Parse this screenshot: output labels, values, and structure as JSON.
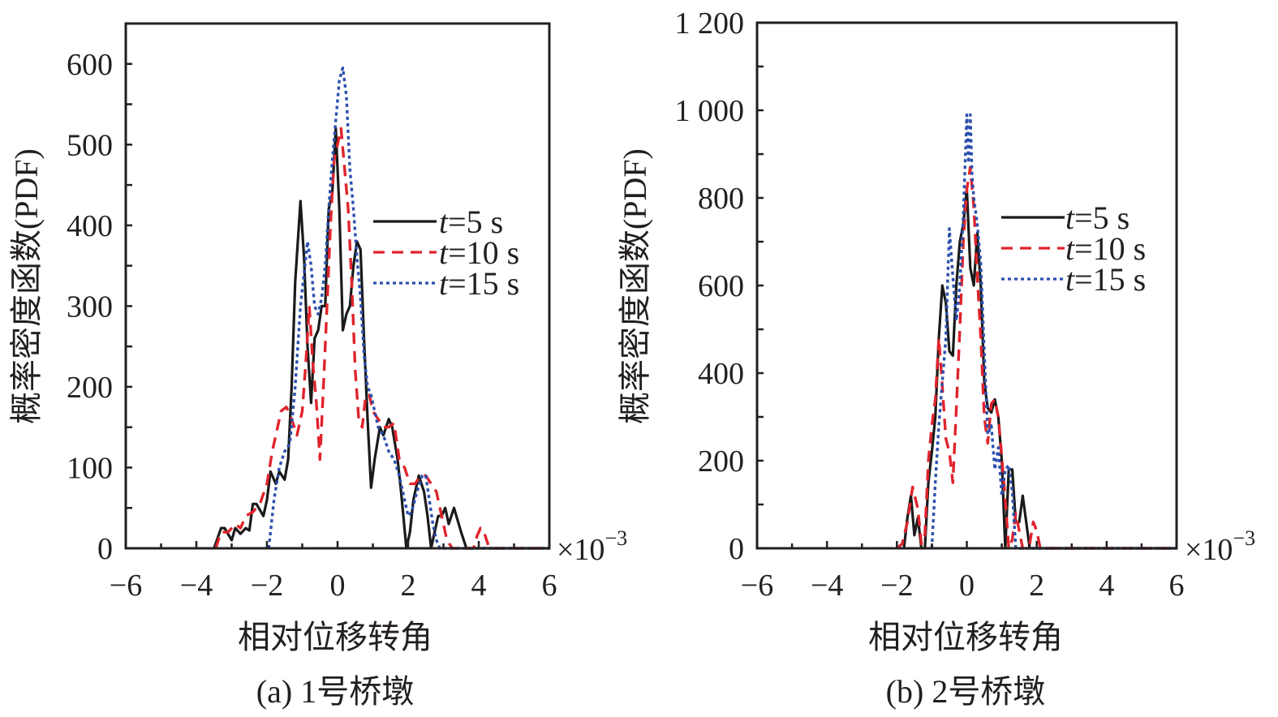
{
  "chart_data": [
    {
      "type": "line",
      "panel": "a",
      "caption": "(a) 1号桥墩",
      "xlabel": "相对位移转角",
      "ylabel": "概率密度函数(PDF)",
      "x_multiplier": "×10",
      "x_multiplier_exp": "−3",
      "xlim": [
        -6,
        6
      ],
      "ylim": [
        0,
        650
      ],
      "xticks": [
        -6,
        -4,
        -2,
        0,
        2,
        4,
        6
      ],
      "xtick_labels": [
        "−6",
        "−4",
        "−2",
        "0",
        "2",
        "4",
        "6"
      ],
      "yticks": [
        0,
        100,
        200,
        300,
        400,
        500,
        600
      ],
      "ytick_labels": [
        "0",
        "100",
        "200",
        "300",
        "400",
        "500",
        "600"
      ],
      "legend_position": "center-right",
      "grid": false,
      "series": [
        {
          "name": "t=5 s",
          "italic_prefix": "t",
          "label_rest": "=5 s",
          "style": "solid",
          "color": "#1a1a1a",
          "x": [
            -3.5,
            -3.3,
            -3.2,
            -3.0,
            -2.9,
            -2.75,
            -2.6,
            -2.5,
            -2.4,
            -2.3,
            -2.1,
            -2.0,
            -1.9,
            -1.75,
            -1.65,
            -1.5,
            -1.4,
            -1.3,
            -1.2,
            -1.05,
            -0.95,
            -0.85,
            -0.75,
            -0.65,
            -0.55,
            -0.45,
            -0.35,
            -0.25,
            -0.15,
            -0.05,
            0.05,
            0.15,
            0.25,
            0.35,
            0.45,
            0.55,
            0.65,
            0.75,
            0.85,
            0.95,
            1.05,
            1.2,
            1.3,
            1.45,
            1.55,
            1.7,
            1.8,
            1.95,
            2.05,
            2.15,
            2.3,
            2.45,
            2.55,
            2.65,
            2.75,
            2.85,
            2.95,
            3.05,
            3.15,
            3.3,
            3.4,
            3.5,
            3.65,
            6.0
          ],
          "y": [
            0,
            25,
            25,
            10,
            25,
            18,
            25,
            22,
            55,
            55,
            40,
            60,
            95,
            80,
            95,
            85,
            110,
            200,
            330,
            430,
            360,
            250,
            180,
            260,
            270,
            300,
            300,
            420,
            440,
            520,
            420,
            270,
            290,
            300,
            350,
            380,
            370,
            260,
            160,
            75,
            110,
            150,
            140,
            160,
            150,
            110,
            70,
            0,
            20,
            60,
            90,
            70,
            40,
            0,
            20,
            40,
            40,
            50,
            30,
            50,
            35,
            20,
            0,
            0
          ]
        },
        {
          "name": "t=10 s",
          "italic_prefix": "t",
          "label_rest": "=10 s",
          "style": "dashed",
          "color": "#e0242c",
          "x": [
            -3.45,
            -3.3,
            -3.1,
            -2.9,
            -2.75,
            -2.6,
            -2.4,
            -2.2,
            -2.0,
            -1.85,
            -1.7,
            -1.6,
            -1.45,
            -1.3,
            -1.15,
            -1.0,
            -0.9,
            -0.8,
            -0.7,
            -0.6,
            -0.5,
            -0.4,
            -0.3,
            -0.2,
            -0.1,
            0.0,
            0.1,
            0.2,
            0.3,
            0.4,
            0.5,
            0.6,
            0.7,
            0.8,
            0.9,
            1.0,
            1.15,
            1.3,
            1.45,
            1.6,
            1.75,
            1.9,
            2.05,
            2.2,
            2.35,
            2.5,
            2.65,
            2.8,
            2.95,
            3.1,
            3.25,
            3.4,
            3.55,
            3.7,
            3.85,
            3.95,
            4.05,
            4.15,
            4.3,
            6.0
          ],
          "y": [
            0,
            20,
            20,
            30,
            25,
            40,
            45,
            55,
            80,
            120,
            150,
            170,
            175,
            160,
            140,
            170,
            230,
            300,
            230,
            180,
            110,
            200,
            300,
            400,
            480,
            500,
            520,
            470,
            420,
            330,
            220,
            160,
            150,
            190,
            190,
            170,
            160,
            150,
            150,
            155,
            110,
            100,
            80,
            80,
            90,
            90,
            80,
            70,
            40,
            10,
            0,
            0,
            0,
            0,
            0,
            15,
            25,
            20,
            0,
            0
          ]
        },
        {
          "name": "t=15 s",
          "italic_prefix": "t",
          "label_rest": "=15 s",
          "style": "dotted",
          "color": "#2b4fad",
          "x": [
            -1.95,
            -1.8,
            -1.65,
            -1.5,
            -1.35,
            -1.2,
            -1.05,
            -0.95,
            -0.85,
            -0.75,
            -0.65,
            -0.55,
            -0.45,
            -0.35,
            -0.25,
            -0.15,
            -0.05,
            0.05,
            0.15,
            0.25,
            0.35,
            0.45,
            0.55,
            0.65,
            0.75,
            0.85,
            0.95,
            1.05,
            1.15,
            1.3,
            1.45,
            1.6,
            1.75,
            1.9,
            2.0,
            2.1,
            2.25,
            2.4,
            2.5,
            2.6,
            2.7,
            2.8,
            2.9,
            6.0
          ],
          "y": [
            0,
            60,
            100,
            120,
            130,
            200,
            300,
            340,
            380,
            350,
            300,
            290,
            310,
            350,
            420,
            480,
            530,
            580,
            595,
            560,
            470,
            420,
            360,
            310,
            240,
            200,
            190,
            170,
            150,
            140,
            120,
            110,
            90,
            60,
            40,
            45,
            70,
            90,
            90,
            60,
            30,
            10,
            0,
            0
          ]
        }
      ]
    },
    {
      "type": "line",
      "panel": "b",
      "caption": "(b) 2号桥墩",
      "xlabel": "相对位移转角",
      "ylabel": "概率密度函数(PDF)",
      "x_multiplier": "×10",
      "x_multiplier_exp": "−3",
      "xlim": [
        -6,
        6
      ],
      "ylim": [
        0,
        1200
      ],
      "xticks": [
        -6,
        -4,
        -2,
        0,
        2,
        4,
        6
      ],
      "xtick_labels": [
        "−6",
        "−4",
        "−2",
        "0",
        "2",
        "4",
        "6"
      ],
      "yticks": [
        0,
        200,
        400,
        600,
        800,
        1000,
        1200
      ],
      "ytick_labels": [
        "0",
        "200",
        "400",
        "600",
        "800",
        "1 000",
        "1 200"
      ],
      "legend_position": "center-right",
      "grid": false,
      "series": [
        {
          "name": "t=5 s",
          "italic_prefix": "t",
          "label_rest": "=5 s",
          "style": "solid",
          "color": "#1a1a1a",
          "x": [
            -1.8,
            -1.7,
            -1.6,
            -1.5,
            -1.4,
            -1.3,
            -1.2,
            -1.1,
            -1.0,
            -0.9,
            -0.8,
            -0.7,
            -0.6,
            -0.5,
            -0.4,
            -0.3,
            -0.2,
            -0.1,
            0.0,
            0.1,
            0.2,
            0.3,
            0.4,
            0.5,
            0.6,
            0.7,
            0.8,
            0.9,
            1.0,
            1.1,
            1.2,
            1.3,
            1.4,
            1.5,
            1.6,
            1.7,
            1.8,
            6.0
          ],
          "y": [
            0,
            70,
            120,
            30,
            70,
            0,
            0,
            150,
            220,
            300,
            480,
            600,
            560,
            450,
            440,
            600,
            700,
            740,
            820,
            640,
            600,
            720,
            600,
            380,
            320,
            310,
            340,
            300,
            200,
            0,
            180,
            180,
            60,
            60,
            120,
            60,
            0,
            0
          ]
        },
        {
          "name": "t=10 s",
          "italic_prefix": "t",
          "label_rest": "=10 s",
          "style": "dashed",
          "color": "#e0242c",
          "x": [
            -2.0,
            -1.85,
            -1.7,
            -1.55,
            -1.4,
            -1.3,
            -1.2,
            -1.1,
            -1.0,
            -0.9,
            -0.8,
            -0.7,
            -0.6,
            -0.5,
            -0.4,
            -0.3,
            -0.2,
            -0.1,
            0.0,
            0.1,
            0.2,
            0.3,
            0.4,
            0.5,
            0.6,
            0.7,
            0.8,
            0.9,
            1.0,
            1.1,
            1.2,
            1.3,
            1.4,
            1.5,
            1.6,
            1.7,
            1.8,
            1.9,
            2.0,
            2.1,
            6.0
          ],
          "y": [
            0,
            10,
            60,
            140,
            90,
            10,
            30,
            200,
            280,
            340,
            480,
            370,
            250,
            220,
            150,
            320,
            500,
            700,
            820,
            870,
            780,
            620,
            480,
            300,
            240,
            330,
            340,
            300,
            210,
            110,
            0,
            20,
            80,
            40,
            0,
            0,
            10,
            60,
            40,
            0,
            0
          ]
        },
        {
          "name": "t=15 s",
          "italic_prefix": "t",
          "label_rest": "=15 s",
          "style": "dotted",
          "color": "#2b4fad",
          "x": [
            -1.0,
            -0.9,
            -0.8,
            -0.7,
            -0.6,
            -0.5,
            -0.4,
            -0.3,
            -0.2,
            -0.1,
            0.0,
            0.05,
            0.1,
            0.15,
            0.2,
            0.3,
            0.4,
            0.5,
            0.6,
            0.7,
            0.8,
            0.9,
            1.0,
            1.1,
            1.2,
            1.3,
            1.4,
            1.5,
            6.0
          ],
          "y": [
            0,
            150,
            280,
            380,
            480,
            730,
            620,
            520,
            600,
            760,
            990,
            880,
            990,
            850,
            800,
            740,
            650,
            450,
            260,
            280,
            180,
            230,
            120,
            180,
            190,
            130,
            0,
            0,
            0
          ]
        }
      ]
    }
  ]
}
